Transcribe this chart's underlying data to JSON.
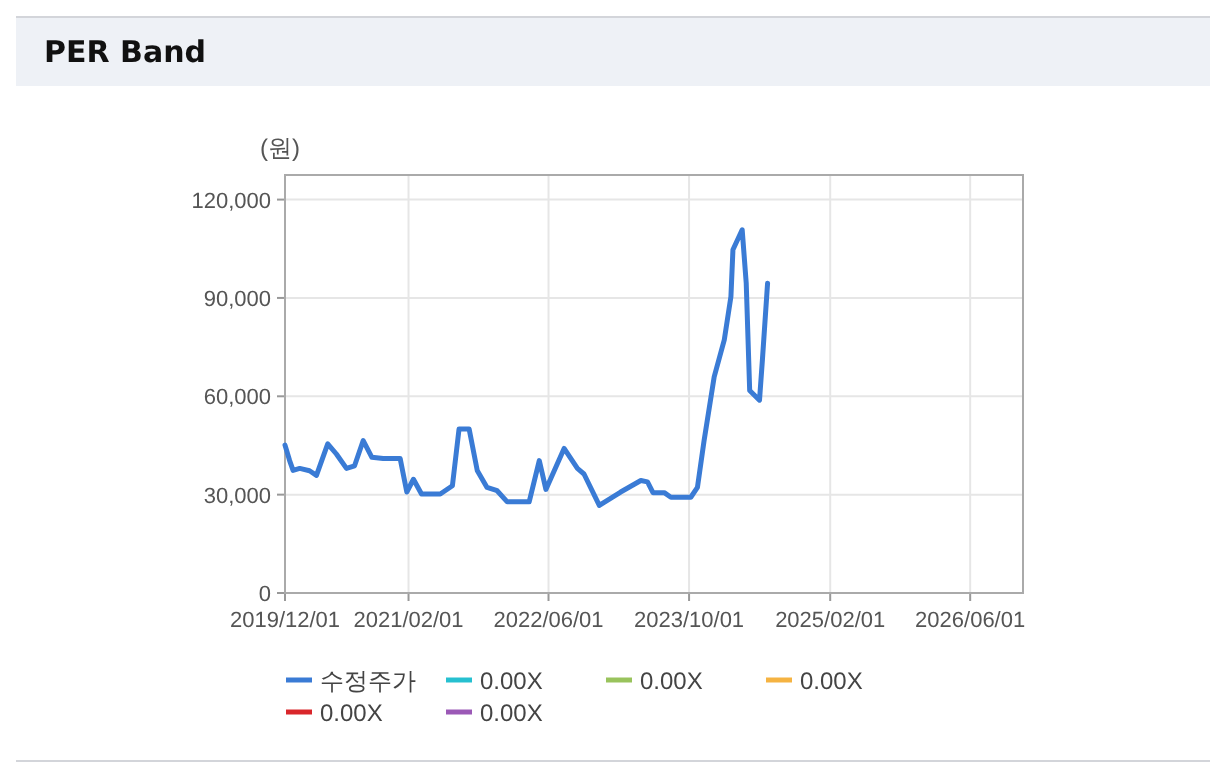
{
  "chart_data": {
    "type": "line",
    "title": "PER Band",
    "ylabel": "(원)",
    "grid": true,
    "legend": "bottom",
    "xlim": [
      "2019-12-01",
      "2026-12-01"
    ],
    "ylim": [
      0,
      127500
    ],
    "xticks": [
      {
        "value": "2019-12-01",
        "label": "2019/12/01"
      },
      {
        "value": "2021-02-01",
        "label": "2021/02/01"
      },
      {
        "value": "2022-06-01",
        "label": "2022/06/01"
      },
      {
        "value": "2023-10-01",
        "label": "2023/10/01"
      },
      {
        "value": "2025-02-01",
        "label": "2025/02/01"
      },
      {
        "value": "2026-06-01",
        "label": "2026/06/01"
      }
    ],
    "yticks": [
      0,
      {
        "value": 30000,
        "label": "30,000"
      },
      {
        "value": 60000,
        "label": "60,000"
      },
      {
        "value": 90000,
        "label": "90,000"
      },
      {
        "value": 120000,
        "label": "120,000"
      }
    ],
    "x": [
      "2019-12-01",
      "2019-12-17",
      "2019-12-29",
      "2020-01-21",
      "2020-02-24",
      "2020-03-19",
      "2020-04-27",
      "2020-05-27",
      "2020-07-01",
      "2020-07-29",
      "2020-08-28",
      "2020-09-27",
      "2020-11-05",
      "2021-01-03",
      "2021-01-26",
      "2021-02-18",
      "2021-03-18",
      "2021-05-22",
      "2021-07-03",
      "2021-07-26",
      "2021-08-30",
      "2021-09-27",
      "2021-10-31",
      "2021-12-05",
      "2022-01-09",
      "2022-03-26",
      "2022-04-30",
      "2022-05-23",
      "2022-07-25",
      "2022-09-09",
      "2022-10-02",
      "2022-11-24",
      "2023-02-06",
      "2023-04-17",
      "2023-05-10",
      "2023-05-29",
      "2023-07-07",
      "2023-07-30",
      "2023-10-07",
      "2023-10-30",
      "2023-11-22",
      "2023-12-27",
      "2024-01-31",
      "2024-02-23",
      "2024-03-01",
      "2024-04-02",
      "2024-04-16",
      "2024-04-28",
      "2024-06-01",
      "2024-06-11",
      "2024-06-29"
    ],
    "series": [
      {
        "name": "수정주가",
        "color": "#3a7bd5",
        "values": [
          45100,
          40400,
          37400,
          38000,
          37300,
          35900,
          45500,
          42400,
          38000,
          38800,
          46500,
          41400,
          41000,
          41000,
          30800,
          34700,
          30200,
          30200,
          32700,
          50000,
          50000,
          37400,
          32200,
          31200,
          27800,
          27800,
          40400,
          31600,
          44100,
          38000,
          36300,
          26700,
          30800,
          34300,
          33900,
          30600,
          30600,
          29200,
          29200,
          32200,
          46500,
          65900,
          77200,
          90400,
          104700,
          110800,
          94500,
          61800,
          58800,
          71000,
          94500
        ]
      },
      {
        "name": "0.00X",
        "color": "#26c0d0",
        "values": [
          null,
          null,
          null,
          null,
          null,
          null,
          null,
          null,
          null,
          null,
          null,
          null,
          null,
          null,
          null,
          null,
          null,
          null,
          null,
          null,
          null,
          null,
          null,
          null,
          null,
          null,
          null,
          null,
          null,
          null,
          null,
          null,
          null,
          null,
          null,
          null,
          null,
          null,
          null,
          null,
          null,
          null,
          null,
          null,
          null,
          null,
          null,
          null,
          null,
          null,
          null
        ]
      },
      {
        "name": "0.00X",
        "color": "#99c35c",
        "values": [
          null,
          null,
          null,
          null,
          null,
          null,
          null,
          null,
          null,
          null,
          null,
          null,
          null,
          null,
          null,
          null,
          null,
          null,
          null,
          null,
          null,
          null,
          null,
          null,
          null,
          null,
          null,
          null,
          null,
          null,
          null,
          null,
          null,
          null,
          null,
          null,
          null,
          null,
          null,
          null,
          null,
          null,
          null,
          null,
          null,
          null,
          null,
          null,
          null,
          null,
          null
        ]
      },
      {
        "name": "0.00X",
        "color": "#f5b342",
        "values": [
          null,
          null,
          null,
          null,
          null,
          null,
          null,
          null,
          null,
          null,
          null,
          null,
          null,
          null,
          null,
          null,
          null,
          null,
          null,
          null,
          null,
          null,
          null,
          null,
          null,
          null,
          null,
          null,
          null,
          null,
          null,
          null,
          null,
          null,
          null,
          null,
          null,
          null,
          null,
          null,
          null,
          null,
          null,
          null,
          null,
          null,
          null,
          null,
          null,
          null,
          null
        ]
      },
      {
        "name": "0.00X",
        "color": "#d9262b",
        "values": [
          null,
          null,
          null,
          null,
          null,
          null,
          null,
          null,
          null,
          null,
          null,
          null,
          null,
          null,
          null,
          null,
          null,
          null,
          null,
          null,
          null,
          null,
          null,
          null,
          null,
          null,
          null,
          null,
          null,
          null,
          null,
          null,
          null,
          null,
          null,
          null,
          null,
          null,
          null,
          null,
          null,
          null,
          null,
          null,
          null,
          null,
          null,
          null,
          null,
          null,
          null
        ]
      },
      {
        "name": "0.00X",
        "color": "#9b59b6",
        "values": [
          null,
          null,
          null,
          null,
          null,
          null,
          null,
          null,
          null,
          null,
          null,
          null,
          null,
          null,
          null,
          null,
          null,
          null,
          null,
          null,
          null,
          null,
          null,
          null,
          null,
          null,
          null,
          null,
          null,
          null,
          null,
          null,
          null,
          null,
          null,
          null,
          null,
          null,
          null,
          null,
          null,
          null,
          null,
          null,
          null,
          null,
          null,
          null,
          null,
          null,
          null
        ]
      }
    ]
  }
}
